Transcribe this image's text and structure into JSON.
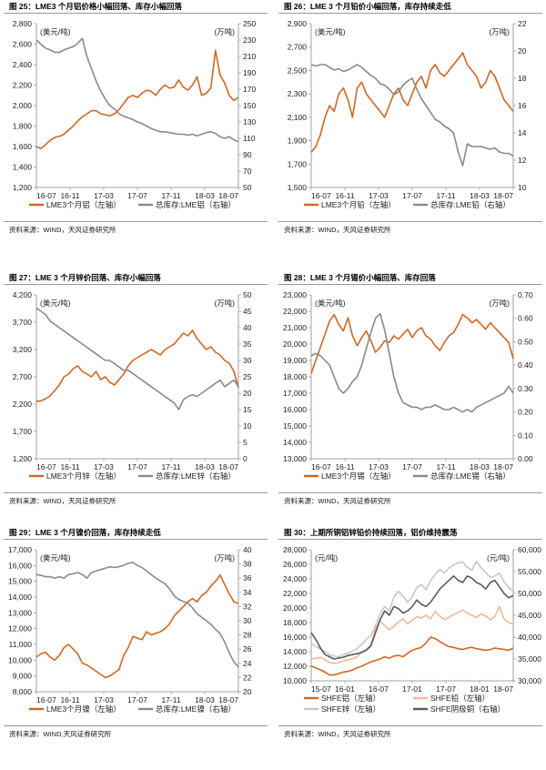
{
  "colors": {
    "orange": "#d4661f",
    "gray": "#8a8a8a",
    "light_orange": "#f0b896",
    "light_gray": "#c8c8c8",
    "dark_gray": "#5a5a5a"
  },
  "panels": [
    {
      "title": "图 25：LME3 个月铝价格小幅回落、库存小幅回落",
      "source": "资料来源：WIND，天风证券研究所"
    },
    {
      "title": "图 26：LME 3 个月铅价小幅回落，库存持续走低",
      "source": "资料来源：WIND，天风证券研究所"
    },
    {
      "title": "图 27：LME 3 个月锌价回落、库存小幅回落",
      "source": "资料来源：WIND，天风证券研究所"
    },
    {
      "title": "图 28：LME 3 个月锡价小幅回落、库存回落",
      "source": "资料来源：WIND，天风证券研究所"
    },
    {
      "title": "图 29：LME 3 个月镍价回落，库存持续走低",
      "source": "资料来源：WIND,天风证券研究所"
    },
    {
      "title": "图 30：上期所铜铝锌铅价持续回落，铝价维持震荡",
      "source": "资料来源：WIND，天风证券研究所"
    }
  ],
  "chart_data": [
    {
      "type": "line",
      "left_unit": "(美元/吨)",
      "right_unit": "(万吨)",
      "x_ticks": [
        "16-07",
        "16-11",
        "17-03",
        "17-07",
        "17-11",
        "18-03",
        "18-07"
      ],
      "left_ticks": [
        "1,200",
        "1,400",
        "1,600",
        "1,800",
        "2,000",
        "2,200",
        "2,400",
        "2,600",
        "2,800"
      ],
      "ylim_left": [
        1200,
        2800
      ],
      "right_ticks": [
        "50",
        "70",
        "90",
        "110",
        "130",
        "150",
        "170",
        "190",
        "210",
        "230",
        "250"
      ],
      "ylim_right": [
        50,
        250
      ],
      "series": [
        {
          "name": "LME3个月铝（左轴）",
          "axis": "left",
          "color": "orange",
          "values": [
            1600,
            1580,
            1620,
            1660,
            1690,
            1700,
            1720,
            1760,
            1800,
            1850,
            1890,
            1920,
            1950,
            1950,
            1920,
            1910,
            1900,
            1920,
            1960,
            2020,
            2080,
            2100,
            2080,
            2120,
            2150,
            2140,
            2100,
            2160,
            2200,
            2170,
            2180,
            2250,
            2180,
            2150,
            2200,
            2280,
            2100,
            2120,
            2170,
            2540,
            2300,
            2220,
            2100,
            2050,
            2080
          ]
        },
        {
          "name": "总库存:LME铝（右轴）",
          "axis": "right",
          "color": "gray",
          "values": [
            230,
            225,
            220,
            218,
            215,
            215,
            218,
            220,
            222,
            226,
            232,
            210,
            195,
            180,
            168,
            158,
            150,
            146,
            140,
            137,
            135,
            133,
            130,
            128,
            125,
            122,
            120,
            118,
            118,
            117,
            116,
            115,
            115,
            114,
            115,
            113,
            115,
            117,
            118,
            116,
            112,
            110,
            112,
            108,
            106
          ]
        }
      ]
    },
    {
      "type": "line",
      "left_unit": "(美元/吨)",
      "right_unit": "(万吨)",
      "x_ticks": [
        "16-07",
        "16-11",
        "17-03",
        "17-07",
        "17-11",
        "18-03",
        "18-07"
      ],
      "left_ticks": [
        "1,500",
        "1,700",
        "1,900",
        "2,100",
        "2,300",
        "2,500",
        "2,700",
        "2,900"
      ],
      "ylim_left": [
        1500,
        2900
      ],
      "right_ticks": [
        "10",
        "12",
        "14",
        "16",
        "18",
        "20",
        "22"
      ],
      "ylim_right": [
        10,
        22
      ],
      "series": [
        {
          "name": "LME3个月铅（左轴）",
          "axis": "left",
          "color": "orange",
          "values": [
            1800,
            1850,
            1950,
            2100,
            2200,
            2150,
            2300,
            2350,
            2250,
            2100,
            2350,
            2400,
            2300,
            2250,
            2200,
            2150,
            2100,
            2200,
            2300,
            2350,
            2250,
            2200,
            2300,
            2400,
            2450,
            2350,
            2500,
            2550,
            2480,
            2450,
            2500,
            2550,
            2600,
            2650,
            2550,
            2500,
            2450,
            2350,
            2400,
            2500,
            2450,
            2350,
            2250,
            2200,
            2150
          ]
        },
        {
          "name": "总库存:LME铅（右轴）",
          "axis": "right",
          "color": "gray",
          "values": [
            19,
            18.9,
            19,
            19,
            18.8,
            18.6,
            18.7,
            18.5,
            18.6,
            18.8,
            19,
            18.8,
            18.5,
            18.2,
            18,
            17.6,
            17.5,
            17.2,
            16.8,
            17,
            17.5,
            17.8,
            18,
            17.2,
            16.5,
            16,
            15.5,
            15,
            14.8,
            14.5,
            14.3,
            14,
            12.6,
            11.6,
            13.2,
            13,
            13,
            13,
            12.9,
            12.8,
            12.9,
            12.6,
            12.5,
            12.5,
            12.3
          ]
        }
      ]
    },
    {
      "type": "line",
      "left_unit": "(美元/吨)",
      "right_unit": "(万吨)",
      "x_ticks": [
        "16-07",
        "16-11",
        "17-03",
        "17-07",
        "17-11",
        "18-03",
        "18-07"
      ],
      "left_ticks": [
        "1,200",
        "1,700",
        "2,200",
        "2,700",
        "3,200",
        "3,700",
        "4,200"
      ],
      "ylim_left": [
        1200,
        4200
      ],
      "right_ticks": [
        "0",
        "5",
        "10",
        "15",
        "20",
        "25",
        "30",
        "35",
        "40",
        "45",
        "50"
      ],
      "ylim_right": [
        0,
        50
      ],
      "series": [
        {
          "name": "LME3个月锌（左轴）",
          "axis": "left",
          "color": "orange",
          "values": [
            2250,
            2260,
            2300,
            2350,
            2450,
            2550,
            2700,
            2750,
            2850,
            2900,
            2800,
            2750,
            2700,
            2800,
            2650,
            2700,
            2600,
            2550,
            2650,
            2750,
            2900,
            3000,
            3050,
            3100,
            3150,
            3200,
            3150,
            3100,
            3200,
            3250,
            3300,
            3400,
            3500,
            3450,
            3550,
            3400,
            3300,
            3200,
            3250,
            3150,
            3100,
            3000,
            2950,
            2800,
            2500
          ]
        },
        {
          "name": "总库存:LME锌（右轴）",
          "axis": "right",
          "color": "gray",
          "values": [
            46,
            45,
            44,
            42,
            41,
            40,
            39,
            38,
            37,
            36,
            35,
            34,
            33,
            32,
            31,
            30,
            30,
            29,
            28,
            27,
            27,
            26,
            25,
            24,
            23,
            22,
            21,
            20,
            19,
            18,
            17,
            15,
            18,
            19,
            19.5,
            19,
            20,
            21,
            22,
            23,
            24,
            22,
            23,
            24,
            22
          ]
        }
      ]
    },
    {
      "type": "line",
      "left_unit": "(美元/吨)",
      "right_unit": "(万吨)",
      "x_ticks": [
        "16-07",
        "16-11",
        "17-03",
        "17-07",
        "17-11",
        "18-03",
        "18-07"
      ],
      "left_ticks": [
        "13,000",
        "14,000",
        "15,000",
        "16,000",
        "17,000",
        "18,000",
        "19,000",
        "20,000",
        "21,000",
        "22,000",
        "23,000"
      ],
      "ylim_left": [
        13000,
        23000
      ],
      "right_ticks": [
        "0.00",
        "0.10",
        "0.20",
        "0.30",
        "0.40",
        "0.50",
        "0.60",
        "0.70"
      ],
      "ylim_right": [
        0,
        0.7
      ],
      "series": [
        {
          "name": "LME3个月锡（左轴）",
          "axis": "left",
          "color": "orange",
          "values": [
            18200,
            19000,
            19800,
            20600,
            21400,
            21800,
            21200,
            20800,
            21600,
            20500,
            19900,
            20400,
            20800,
            20200,
            19500,
            19800,
            20200,
            20100,
            20500,
            20300,
            20600,
            20900,
            20400,
            20800,
            21000,
            20500,
            20300,
            19900,
            19600,
            20100,
            20500,
            20700,
            21200,
            21800,
            21600,
            21300,
            21500,
            21200,
            20900,
            21300,
            21000,
            20700,
            20400,
            20100,
            19100
          ]
        },
        {
          "name": "总库存:LME锡（右轴）",
          "axis": "right",
          "color": "gray",
          "values": [
            0.44,
            0.45,
            0.44,
            0.42,
            0.4,
            0.35,
            0.3,
            0.28,
            0.3,
            0.33,
            0.35,
            0.4,
            0.47,
            0.54,
            0.6,
            0.62,
            0.55,
            0.45,
            0.35,
            0.28,
            0.24,
            0.23,
            0.22,
            0.22,
            0.21,
            0.22,
            0.22,
            0.23,
            0.22,
            0.21,
            0.21,
            0.22,
            0.21,
            0.2,
            0.21,
            0.2,
            0.22,
            0.23,
            0.24,
            0.25,
            0.26,
            0.27,
            0.28,
            0.31,
            0.28
          ]
        }
      ]
    },
    {
      "type": "line",
      "left_unit": "(美元/吨)",
      "right_unit": "(万吨)",
      "x_ticks": [
        "16-07",
        "16-11",
        "17-03",
        "17-07",
        "17-11",
        "18-03",
        "18-07"
      ],
      "left_ticks": [
        "8,000",
        "9,000",
        "10,000",
        "11,000",
        "12,000",
        "13,000",
        "14,000",
        "15,000",
        "16,000",
        "17,000"
      ],
      "ylim_left": [
        8000,
        17000
      ],
      "right_ticks": [
        "20",
        "22",
        "24",
        "26",
        "28",
        "30",
        "32",
        "34",
        "36",
        "38",
        "40"
      ],
      "ylim_right": [
        20,
        40
      ],
      "series": [
        {
          "name": "LME3个月镍（左轴）",
          "axis": "left",
          "color": "orange",
          "values": [
            10200,
            10400,
            10500,
            10200,
            10000,
            10300,
            10800,
            11000,
            10700,
            10400,
            9800,
            9700,
            9500,
            9300,
            9100,
            8900,
            9000,
            9200,
            9400,
            10300,
            10800,
            11500,
            11400,
            11300,
            11800,
            11600,
            11700,
            11800,
            12000,
            12300,
            12800,
            13100,
            13400,
            13700,
            13900,
            13700,
            14100,
            14300,
            14700,
            15000,
            15400,
            14800,
            14200,
            13700,
            13600
          ]
        },
        {
          "name": "总库存:LME镍（右轴）",
          "axis": "right",
          "color": "gray",
          "values": [
            36.5,
            36.4,
            36.2,
            36.2,
            36,
            36.2,
            36,
            36.5,
            36.6,
            36.8,
            36.5,
            36,
            36.8,
            37,
            37.2,
            37.4,
            37.6,
            37.5,
            37.6,
            37.8,
            38.1,
            38.2,
            37.8,
            37.5,
            37,
            36.5,
            36,
            35.6,
            35.2,
            34.5,
            33.5,
            33,
            32.7,
            32.5,
            31.8,
            31,
            30.5,
            30,
            29.5,
            28.8,
            28.2,
            27,
            25.5,
            24.2,
            23.5
          ]
        }
      ]
    },
    {
      "type": "line",
      "left_unit": "(元/吨)",
      "right_unit": "(元/吨)",
      "x_ticks": [
        "15-07",
        "16-01",
        "16-07",
        "17-01",
        "17-07",
        "18-01",
        "18-07"
      ],
      "left_ticks": [
        "10,000",
        "12,000",
        "14,000",
        "16,000",
        "18,000",
        "20,000",
        "22,000",
        "24,000",
        "26,000",
        "28,000"
      ],
      "ylim_left": [
        10000,
        28000
      ],
      "right_ticks": [
        "30,000",
        "35,000",
        "40,000",
        "45,000",
        "50,000",
        "55,000",
        "60,000"
      ],
      "ylim_right": [
        30000,
        60000
      ],
      "series": [
        {
          "name": "SHFE铝（左轴）",
          "axis": "left",
          "color": "orange",
          "values": [
            12000,
            11800,
            11500,
            11200,
            10800,
            10800,
            11000,
            11200,
            11300,
            11500,
            11800,
            12000,
            12300,
            12600,
            12800,
            13000,
            13300,
            13100,
            13400,
            13500,
            13300,
            13800,
            14200,
            14400,
            14600,
            15200,
            16000,
            15800,
            15400,
            15000,
            14700,
            14600,
            14400,
            14300,
            14500,
            14600,
            14400,
            14300,
            14200,
            14300,
            14500,
            14400,
            14300,
            14200,
            14500
          ]
        },
        {
          "name": "SHFE铅（左轴）",
          "axis": "left",
          "color": "light_orange",
          "values": [
            13000,
            13100,
            13200,
            12900,
            12500,
            12400,
            12500,
            12700,
            12900,
            13000,
            13300,
            14000,
            14300,
            14900,
            17200,
            18200,
            17600,
            17000,
            17500,
            18100,
            18500,
            17800,
            18300,
            18800,
            18600,
            19000,
            18500,
            19500,
            18900,
            18400,
            18700,
            19100,
            19400,
            19700,
            19300,
            19000,
            18700,
            19200,
            18900,
            18400,
            18800,
            20200,
            18500,
            18000,
            17800
          ]
        },
        {
          "name": "SHFE锌（左轴）",
          "axis": "left",
          "color": "light_gray",
          "values": [
            15200,
            14700,
            14400,
            14000,
            13600,
            13400,
            13300,
            13600,
            13800,
            14100,
            14400,
            15000,
            15700,
            16200,
            17600,
            19200,
            20200,
            19600,
            21500,
            22300,
            21600,
            20800,
            21500,
            22800,
            23200,
            22500,
            23800,
            24600,
            25300,
            24800,
            25500,
            25900,
            26200,
            26300,
            25600,
            25200,
            26400,
            25500,
            24900,
            24200,
            24400,
            24800,
            23600,
            22800,
            22300
          ]
        },
        {
          "name": "SHFE阴极铜（右轴）",
          "axis": "right",
          "color": "dark_gray",
          "values": [
            41000,
            39500,
            37500,
            36000,
            35500,
            35000,
            35200,
            35400,
            35800,
            36000,
            36200,
            36500,
            37000,
            38000,
            41000,
            44000,
            46000,
            45000,
            47000,
            46500,
            45500,
            46000,
            47000,
            48500,
            47500,
            47000,
            48000,
            49500,
            51000,
            52000,
            53000,
            54000,
            53000,
            52500,
            54000,
            53500,
            52500,
            52000,
            51000,
            52500,
            53000,
            51500,
            50000,
            49000,
            49500
          ]
        }
      ]
    }
  ]
}
